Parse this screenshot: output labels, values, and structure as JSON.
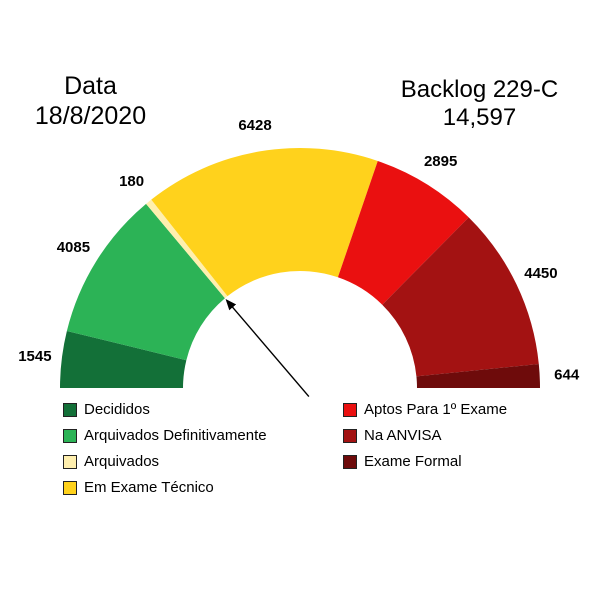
{
  "header": {
    "date_label": "Data",
    "date_value": "18/8/2020",
    "backlog_label": "Backlog 229-C",
    "backlog_value": "14,597"
  },
  "chart_data": {
    "type": "pie",
    "subtype": "half-donut-gauge",
    "title": "Backlog 229-C",
    "date": "18/8/2020",
    "backlog_total": 14597,
    "angle_span_deg": 180,
    "legend_position": "bottom-two-columns",
    "segments": [
      {
        "label": "Decididos",
        "value": 1545,
        "color": "#137038"
      },
      {
        "label": "Arquivados Definitivamente",
        "value": 4085,
        "color": "#2cb356"
      },
      {
        "label": "Arquivados",
        "value": 180,
        "color": "#ffefae"
      },
      {
        "label": "Em Exame Técnico",
        "value": 6428,
        "color": "#ffd21c"
      },
      {
        "label": "Aptos Para 1º Exame",
        "value": 2895,
        "color": "#ea1010"
      },
      {
        "label": "Na ANVISA",
        "value": 4450,
        "color": "#a31212"
      },
      {
        "label": "Exame Formal",
        "value": 644,
        "color": "#6e0b0b"
      }
    ],
    "legend_columns": {
      "left": [
        0,
        1,
        2,
        3
      ],
      "right": [
        4,
        5,
        6
      ]
    },
    "annotation": "black arrow from lower center pointing to inner boundary between Arquivados Definitivamente and Arquivados"
  }
}
